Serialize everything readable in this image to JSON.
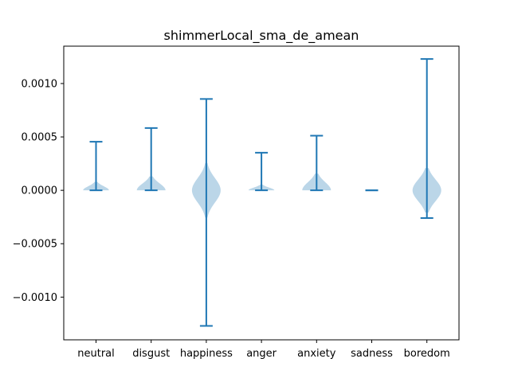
{
  "chart_data": {
    "type": "violin",
    "title": "shimmerLocal_sma_de_amean",
    "xlabel": "",
    "ylabel": "",
    "categories": [
      "neutral",
      "disgust",
      "happiness",
      "anger",
      "anxiety",
      "sadness",
      "boredom"
    ],
    "ylim": [
      -0.0014,
      0.00135
    ],
    "yticks": [
      -0.001,
      -0.0005,
      0.0,
      0.0005,
      0.001
    ],
    "ytick_labels": [
      "−0.0010",
      "−0.0005",
      "0.0000",
      "0.0005",
      "0.0010"
    ],
    "min": [
      0.0,
      0.0,
      -0.00127,
      0.0,
      0.0,
      0.0,
      -0.00026
    ],
    "max": [
      0.000455,
      0.000583,
      0.000855,
      0.000352,
      0.000512,
      0.0,
      0.00123
    ],
    "grid": false,
    "colors": {
      "body": "#1f77b4",
      "body_alpha": 0.3,
      "lines": "#1f77b4"
    }
  }
}
